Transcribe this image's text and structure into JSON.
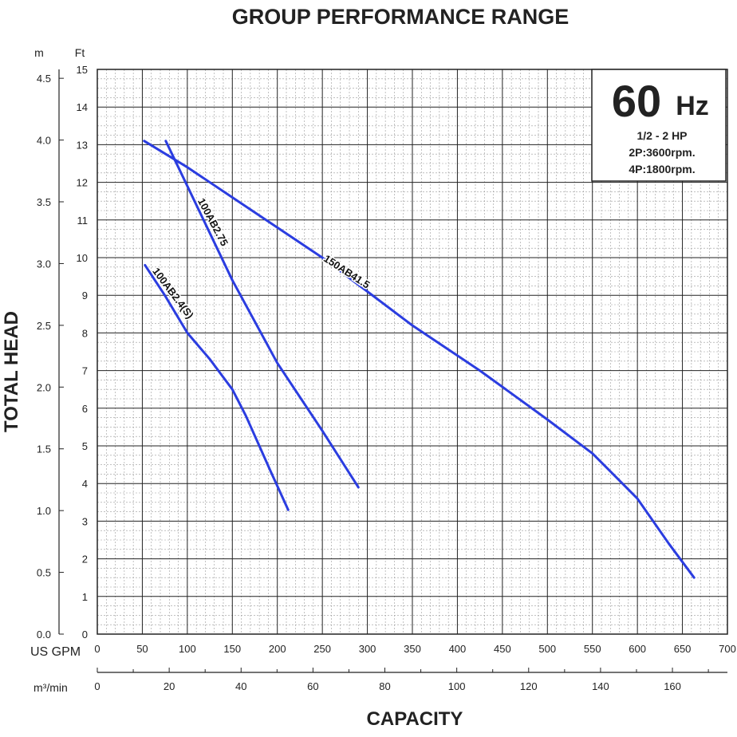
{
  "chart_data": {
    "type": "line",
    "title": "GROUP PERFORMANCE RANGE",
    "xlabel": "CAPACITY",
    "ylabel": "TOTAL HEAD",
    "grid": true,
    "x_primary": {
      "unit": "US GPM",
      "range": [
        0,
        700
      ],
      "ticks": [
        "0",
        "50",
        "100",
        "150",
        "200",
        "250",
        "300",
        "350",
        "400",
        "450",
        "500",
        "550",
        "600",
        "650",
        "700"
      ]
    },
    "x_secondary": {
      "unit": "m³/min",
      "ticks": [
        "0",
        "20",
        "40",
        "60",
        "80",
        "100",
        "120",
        "140",
        "160"
      ]
    },
    "y_primary": {
      "unit": "Ft",
      "range": [
        0,
        15
      ],
      "ticks": [
        "0",
        "1",
        "2",
        "3",
        "4",
        "5",
        "6",
        "7",
        "8",
        "9",
        "10",
        "11",
        "12",
        "13",
        "14",
        "15"
      ]
    },
    "y_secondary": {
      "unit": "m",
      "ticks": [
        "0.0",
        "0.5",
        "1.0",
        "1.5",
        "2.0",
        "2.5",
        "3.0",
        "3.5",
        "4.0",
        "4.5"
      ]
    },
    "series": [
      {
        "name": "100AB2.4(S)",
        "label": "100AB2.4(S)",
        "color": "#2b3de0",
        "x": [
          53,
          75,
          100,
          125,
          150,
          165,
          180,
          193,
          212
        ],
        "y": [
          9.8,
          9.0,
          8.0,
          7.3,
          6.5,
          5.8,
          5.0,
          4.3,
          3.3
        ]
      },
      {
        "name": "100AB2.75",
        "label": "100AB2.75",
        "color": "#2b3de0",
        "x": [
          76,
          100,
          150,
          200,
          250,
          290
        ],
        "y": [
          13.1,
          11.9,
          9.4,
          7.2,
          5.4,
          3.9
        ]
      },
      {
        "name": "150AB41.5",
        "label": "150AB41.5",
        "color": "#2b3de0",
        "x": [
          52,
          100,
          150,
          200,
          250,
          300,
          350,
          425,
          500,
          550,
          600,
          635,
          663
        ],
        "y": [
          13.1,
          12.4,
          11.6,
          10.8,
          10.0,
          9.1,
          8.2,
          7.0,
          5.7,
          4.8,
          3.6,
          2.4,
          1.5
        ]
      }
    ]
  },
  "info_box": {
    "frequency_value": "60",
    "frequency_unit": "Hz",
    "power_range": "1/2 - 2 HP",
    "speed_2p": "2P:3600rpm.",
    "speed_4p": "4P:1800rpm."
  }
}
